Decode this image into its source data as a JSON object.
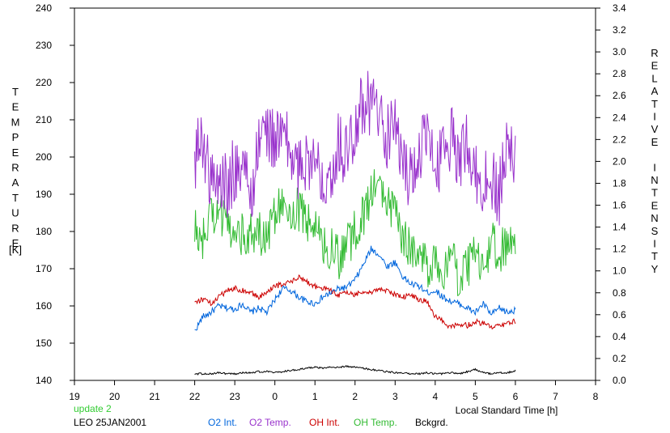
{
  "chart_data": {
    "type": "line",
    "xlabel": "Local Standard Time [h]",
    "ylabel_left": "TEMPERATURE",
    "ylabel_left_unit": "[K]",
    "ylabel_right": "RELATIVE INTENSITY",
    "x_ticks": [
      "19",
      "20",
      "21",
      "22",
      "23",
      "0",
      "1",
      "2",
      "3",
      "4",
      "5",
      "6",
      "7",
      "8"
    ],
    "x_range": [
      19,
      32
    ],
    "ylim_left": [
      140,
      240
    ],
    "y_ticks_left": [
      140,
      150,
      160,
      170,
      180,
      190,
      200,
      210,
      220,
      230,
      240
    ],
    "ylim_right": [
      0.0,
      3.4
    ],
    "y_ticks_right": [
      "0.0",
      "0.2",
      "0.4",
      "0.6",
      "0.8",
      "1.0",
      "1.2",
      "1.4",
      "1.6",
      "1.8",
      "2.0",
      "2.2",
      "2.4",
      "2.6",
      "2.8",
      "3.0",
      "3.2",
      "3.4"
    ],
    "grid": false,
    "legend_placement": "bottom",
    "status_text": "update 2",
    "station_text": "LEO 25JAN2001",
    "series": [
      {
        "name": "O2 Int.",
        "axis": "right",
        "color": "#0066dd",
        "x": [
          22.0,
          22.2,
          22.4,
          22.6,
          22.8,
          23.0,
          23.2,
          23.4,
          23.6,
          23.8,
          24.0,
          24.2,
          24.4,
          24.6,
          24.8,
          25.0,
          25.2,
          25.4,
          25.6,
          25.8,
          26.0,
          26.2,
          26.4,
          26.6,
          26.8,
          27.0,
          27.2,
          27.4,
          27.6,
          27.8,
          28.0,
          28.2,
          28.4,
          28.6,
          28.8,
          29.0,
          29.2,
          29.4,
          29.6,
          29.8,
          30.0
        ],
        "values": [
          0.45,
          0.58,
          0.62,
          0.68,
          0.66,
          0.65,
          0.7,
          0.62,
          0.66,
          0.62,
          0.74,
          0.84,
          0.82,
          0.76,
          0.72,
          0.7,
          0.76,
          0.8,
          0.84,
          0.85,
          0.92,
          1.05,
          1.2,
          1.15,
          1.04,
          1.08,
          0.94,
          0.88,
          0.86,
          0.8,
          0.82,
          0.76,
          0.72,
          0.7,
          0.66,
          0.62,
          0.7,
          0.6,
          0.66,
          0.62,
          0.64
        ]
      },
      {
        "name": "O2 Temp.",
        "axis": "left",
        "color": "#9933cc",
        "x": [
          22.0,
          22.2,
          22.4,
          22.6,
          22.8,
          23.0,
          23.2,
          23.4,
          23.6,
          23.8,
          24.0,
          24.2,
          24.4,
          24.6,
          24.8,
          25.0,
          25.2,
          25.4,
          25.6,
          25.8,
          26.0,
          26.2,
          26.4,
          26.6,
          26.8,
          27.0,
          27.2,
          27.4,
          27.6,
          27.8,
          28.0,
          28.2,
          28.4,
          28.6,
          28.8,
          29.0,
          29.2,
          29.4,
          29.6,
          29.8,
          30.0
        ],
        "values": [
          200,
          205,
          194,
          193,
          192,
          197,
          199,
          188,
          205,
          207,
          204,
          207,
          200,
          196,
          201,
          197,
          196,
          197,
          204,
          200,
          210,
          215,
          214,
          212,
          205,
          209,
          198,
          194,
          202,
          205,
          195,
          204,
          205,
          200,
          205,
          196,
          192,
          195,
          190,
          203,
          199
        ]
      },
      {
        "name": "OH Int.",
        "axis": "right",
        "color": "#cc0000",
        "x": [
          22.0,
          22.2,
          22.4,
          22.6,
          22.8,
          23.0,
          23.2,
          23.4,
          23.6,
          23.8,
          24.0,
          24.2,
          24.4,
          24.6,
          24.8,
          25.0,
          25.2,
          25.4,
          25.6,
          25.8,
          26.0,
          26.2,
          26.4,
          26.6,
          26.8,
          27.0,
          27.2,
          27.4,
          27.6,
          27.8,
          28.0,
          28.2,
          28.4,
          28.6,
          28.8,
          29.0,
          29.2,
          29.4,
          29.6,
          29.8,
          30.0
        ],
        "values": [
          0.72,
          0.74,
          0.7,
          0.76,
          0.82,
          0.84,
          0.82,
          0.8,
          0.76,
          0.8,
          0.86,
          0.88,
          0.9,
          0.94,
          0.9,
          0.86,
          0.84,
          0.82,
          0.78,
          0.8,
          0.78,
          0.82,
          0.8,
          0.84,
          0.82,
          0.78,
          0.76,
          0.78,
          0.74,
          0.72,
          0.58,
          0.54,
          0.48,
          0.52,
          0.5,
          0.54,
          0.52,
          0.48,
          0.5,
          0.52,
          0.54
        ]
      },
      {
        "name": "OH Temp.",
        "axis": "left",
        "color": "#33bb33",
        "x": [
          22.0,
          22.2,
          22.4,
          22.6,
          22.8,
          23.0,
          23.2,
          23.4,
          23.6,
          23.8,
          24.0,
          24.2,
          24.4,
          24.6,
          24.8,
          25.0,
          25.2,
          25.4,
          25.6,
          25.8,
          26.0,
          26.2,
          26.4,
          26.6,
          26.8,
          27.0,
          27.2,
          27.4,
          27.6,
          27.8,
          28.0,
          28.2,
          28.4,
          28.6,
          28.8,
          29.0,
          29.2,
          29.4,
          29.6,
          29.8,
          30.0
        ],
        "values": [
          180,
          178,
          184,
          186,
          181,
          182,
          179,
          180,
          180,
          178,
          185,
          190,
          185,
          186,
          182,
          183,
          175,
          176,
          173,
          176,
          180,
          184,
          190,
          194,
          186,
          188,
          178,
          175,
          176,
          170,
          174,
          168,
          176,
          166,
          170,
          175,
          168,
          178,
          174,
          177,
          175
        ]
      },
      {
        "name": "Bckgrd.",
        "axis": "right",
        "color": "#000000",
        "x": [
          22.0,
          22.2,
          22.4,
          22.6,
          22.8,
          23.0,
          23.2,
          23.4,
          23.6,
          23.8,
          24.0,
          24.2,
          24.4,
          24.6,
          24.8,
          25.0,
          25.2,
          25.4,
          25.6,
          25.8,
          26.0,
          26.2,
          26.4,
          26.6,
          26.8,
          27.0,
          27.2,
          27.4,
          27.6,
          27.8,
          28.0,
          28.2,
          28.4,
          28.6,
          28.8,
          29.0,
          29.2,
          29.4,
          29.6,
          29.8,
          30.0
        ],
        "values": [
          0.06,
          0.06,
          0.06,
          0.07,
          0.06,
          0.06,
          0.07,
          0.07,
          0.08,
          0.08,
          0.07,
          0.08,
          0.09,
          0.1,
          0.11,
          0.12,
          0.11,
          0.12,
          0.12,
          0.13,
          0.12,
          0.11,
          0.1,
          0.09,
          0.08,
          0.07,
          0.07,
          0.06,
          0.06,
          0.07,
          0.06,
          0.06,
          0.07,
          0.06,
          0.08,
          0.1,
          0.07,
          0.06,
          0.07,
          0.07,
          0.09
        ]
      }
    ]
  }
}
